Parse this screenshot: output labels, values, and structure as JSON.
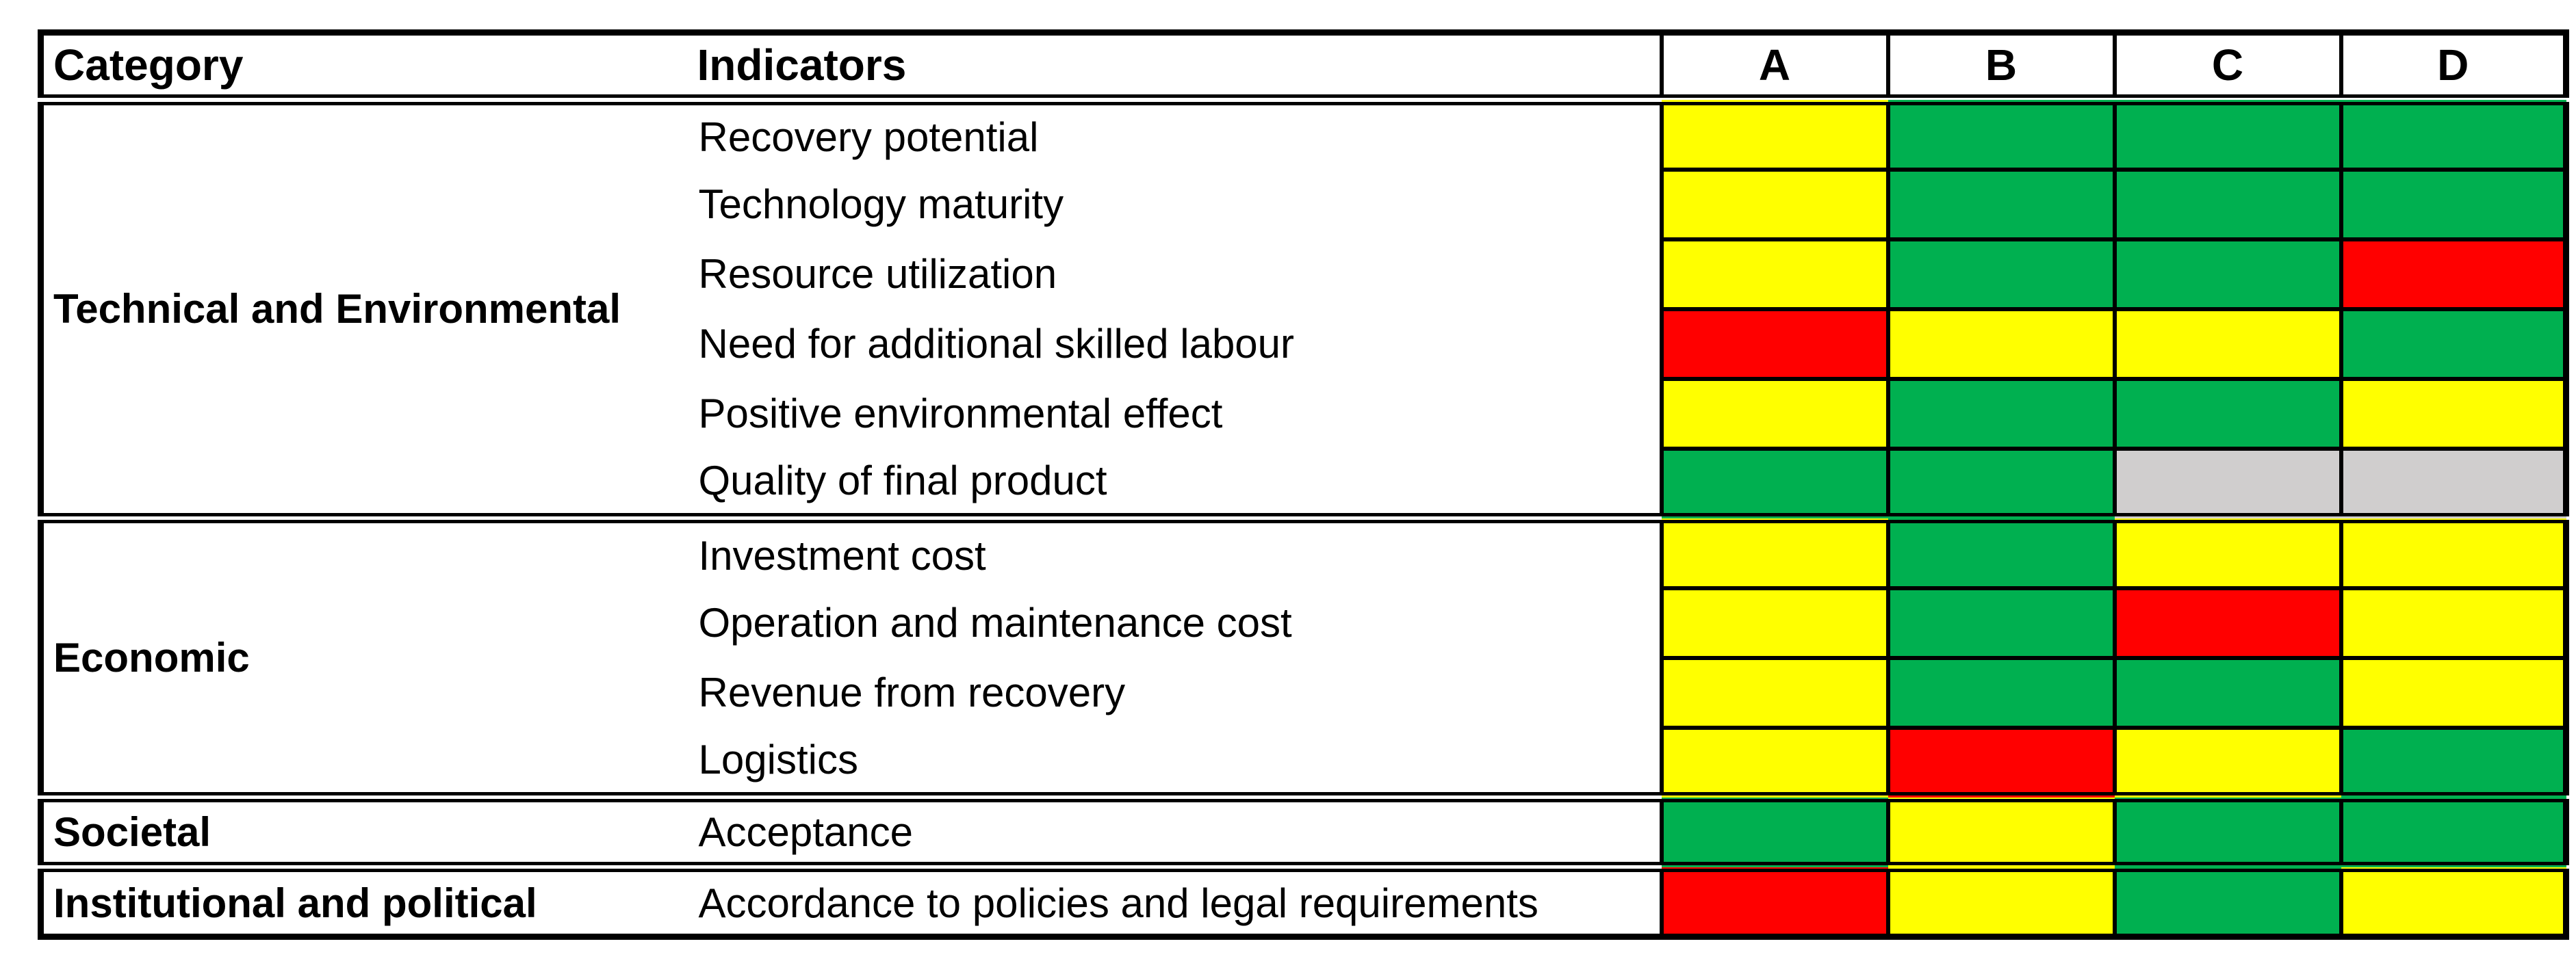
{
  "table": {
    "headers": {
      "category": "Category",
      "indicators": "Indicators",
      "options": [
        "A",
        "B",
        "C",
        "D"
      ]
    },
    "legend_colors": {
      "good": "#00B050",
      "medium": "#FFFF00",
      "poor": "#FF0000",
      "not_assessed": "#D0CECE"
    },
    "groups": [
      {
        "category": "Technical and Environmental",
        "rows": [
          {
            "indicator": "Recovery potential",
            "ratings": [
              "medium",
              "good",
              "good",
              "good"
            ]
          },
          {
            "indicator": "Technology maturity",
            "ratings": [
              "medium",
              "good",
              "good",
              "good"
            ]
          },
          {
            "indicator": "Resource utilization",
            "ratings": [
              "medium",
              "good",
              "good",
              "poor"
            ]
          },
          {
            "indicator": "Need for additional skilled labour",
            "ratings": [
              "poor",
              "medium",
              "medium",
              "good"
            ]
          },
          {
            "indicator": "Positive environmental effect",
            "ratings": [
              "medium",
              "good",
              "good",
              "medium"
            ]
          },
          {
            "indicator": "Quality of final product",
            "ratings": [
              "good",
              "good",
              "not_assessed",
              "not_assessed"
            ]
          }
        ]
      },
      {
        "category": "Economic",
        "rows": [
          {
            "indicator": "Investment cost",
            "ratings": [
              "medium",
              "good",
              "medium",
              "medium"
            ]
          },
          {
            "indicator": "Operation and maintenance cost",
            "ratings": [
              "medium",
              "good",
              "poor",
              "medium"
            ]
          },
          {
            "indicator": "Revenue from recovery",
            "ratings": [
              "medium",
              "good",
              "good",
              "medium"
            ]
          },
          {
            "indicator": "Logistics",
            "ratings": [
              "medium",
              "poor",
              "medium",
              "good"
            ]
          }
        ]
      },
      {
        "category": "Societal",
        "rows": [
          {
            "indicator": "Acceptance",
            "ratings": [
              "good",
              "medium",
              "good",
              "good"
            ]
          }
        ]
      },
      {
        "category": "Institutional and political",
        "rows": [
          {
            "indicator": "Accordance to policies and legal requirements",
            "ratings": [
              "poor",
              "medium",
              "good",
              "medium"
            ]
          }
        ]
      }
    ]
  }
}
